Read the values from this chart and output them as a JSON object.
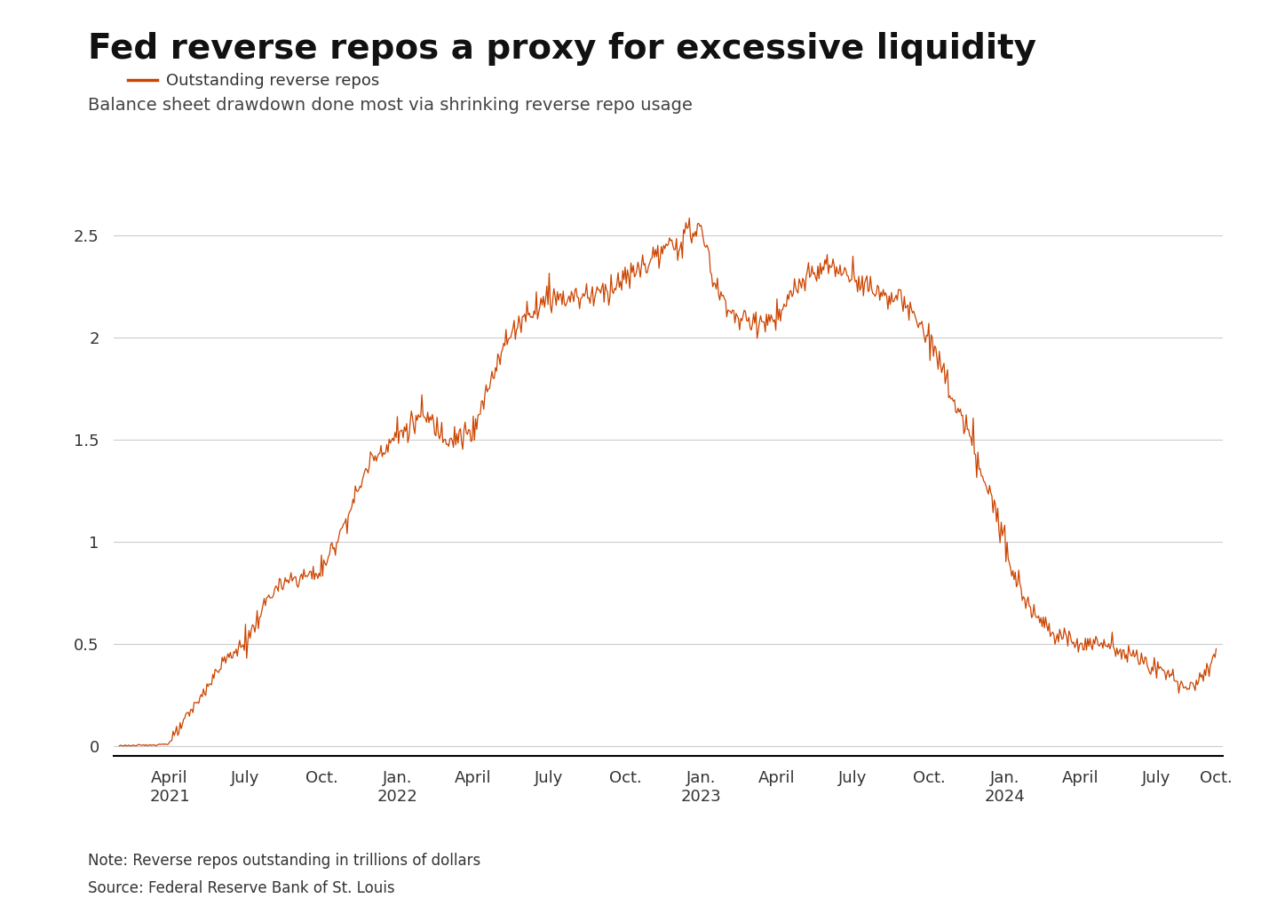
{
  "title": "Fed reverse repos a proxy for excessive liquidity",
  "subtitle": "Balance sheet drawdown done most via shrinking reverse repo usage",
  "legend_label": "Outstanding reverse repos",
  "note": "Note: Reverse repos outstanding in trillions of dollars",
  "source": "Source: Federal Reserve Bank of St. Louis",
  "line_color": "#CC4400",
  "background_color": "#ffffff",
  "title_fontsize": 28,
  "subtitle_fontsize": 14,
  "legend_fontsize": 13,
  "tick_fontsize": 13,
  "note_fontsize": 12,
  "yticks": [
    0,
    0.5,
    1,
    1.5,
    2,
    2.5
  ],
  "ylim": [
    -0.05,
    2.75
  ],
  "xtick_labels": [
    "April\n2021",
    "July",
    "Oct.",
    "Jan.\n2022",
    "April",
    "July",
    "Oct.",
    "Jan.\n2023",
    "April",
    "July",
    "Oct.",
    "Jan.\n2024",
    "April",
    "July",
    "Oct."
  ]
}
